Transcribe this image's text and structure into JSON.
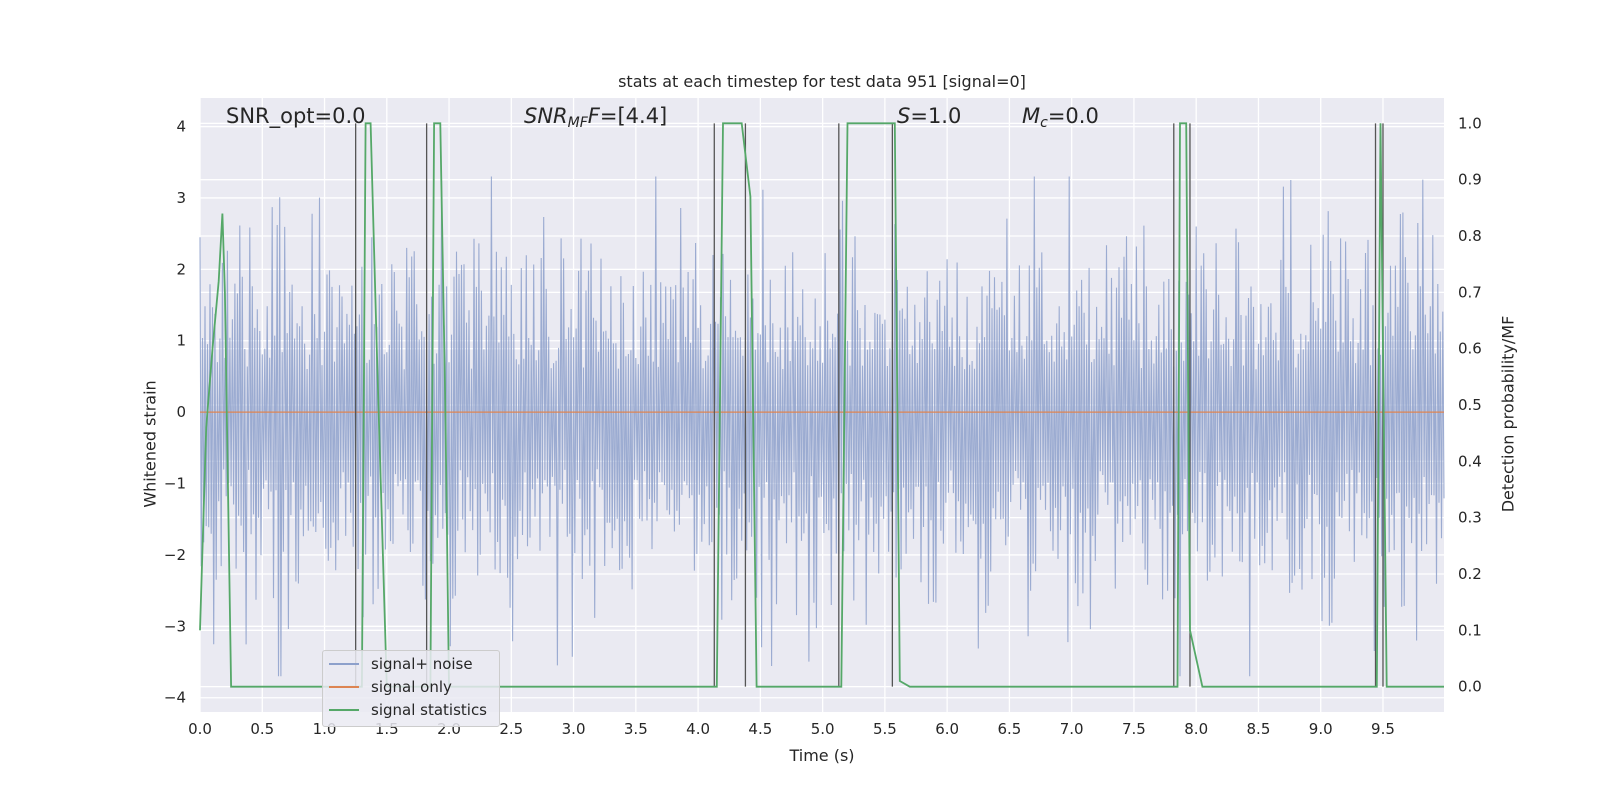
{
  "chart_data": {
    "type": "line",
    "title": "stats at each timestep for test data 951 [signal=0]",
    "xlabel": "Time (s)",
    "ylabel": "Whitened strain",
    "ylabel_right": "Detection probability/MF",
    "xlim": [
      0.0,
      9.99
    ],
    "ylim": [
      -4.2,
      4.4
    ],
    "ylim_right": [
      -0.045,
      1.045
    ],
    "x_ticks": [
      "0.0",
      "0.5",
      "1.0",
      "1.5",
      "2.0",
      "2.5",
      "3.0",
      "3.5",
      "4.0",
      "4.5",
      "5.0",
      "5.5",
      "6.0",
      "6.5",
      "7.0",
      "7.5",
      "8.0",
      "8.5",
      "9.0",
      "9.5"
    ],
    "y_ticks": [
      "4",
      "3",
      "2",
      "1",
      "0",
      "−1",
      "−2",
      "−3",
      "−4"
    ],
    "y_ticks_right": [
      "1.0",
      "0.9",
      "0.8",
      "0.7",
      "0.6",
      "0.5",
      "0.4",
      "0.3",
      "0.2",
      "0.1",
      "0.0"
    ],
    "grid": true,
    "legend_placement": "lower-left",
    "annotations": {
      "snr_opt": "SNR_opt=0.0",
      "snr_mf_main": "SNR",
      "snr_mf_sub": "MF",
      "snr_mf_rest": "=[4.4]",
      "s_main": "S",
      "s_rest": "=1.0",
      "mc_main": "M",
      "mc_sub": "c",
      "mc_rest": "=0.0"
    },
    "series": [
      {
        "name": "signal+ noise",
        "color": "#8da0cb",
        "axis": "left",
        "description_values": "dense white noise, roughly between -3.7 and 3.3",
        "envelope": {
          "typical_min": -2.3,
          "typical_max": 2.0,
          "extreme_min": -3.7,
          "extreme_max": 3.3
        }
      },
      {
        "name": "signal only",
        "color": "#dd8452",
        "axis": "left",
        "x": [
          0.0,
          9.99
        ],
        "y": [
          0.0,
          0.0
        ]
      },
      {
        "name": "signal statistics",
        "color": "#55a868",
        "axis": "right",
        "x": [
          0.0,
          0.05,
          0.1,
          0.15,
          0.18,
          0.2,
          0.25,
          0.3,
          1.3,
          1.33,
          1.37,
          1.42,
          1.5,
          1.6,
          1.85,
          1.88,
          1.93,
          1.97,
          2.0,
          4.15,
          4.2,
          4.35,
          4.42,
          4.47,
          5.15,
          5.2,
          5.58,
          5.62,
          5.7,
          7.85,
          7.87,
          7.92,
          7.95,
          8.05,
          9.45,
          9.48,
          9.53,
          9.58,
          9.99
        ],
        "y": [
          0.1,
          0.46,
          0.6,
          0.72,
          0.84,
          0.7,
          0.0,
          0.0,
          0.0,
          1.0,
          1.0,
          0.6,
          0.0,
          0.0,
          0.0,
          1.0,
          1.0,
          0.5,
          0.0,
          0.0,
          1.0,
          1.0,
          0.87,
          0.0,
          0.0,
          1.0,
          1.0,
          0.01,
          0.0,
          0.0,
          1.0,
          1.0,
          0.1,
          0.0,
          0.0,
          1.0,
          0.0,
          0.0,
          0.0
        ]
      }
    ],
    "vertical_markers": [
      1.25,
      1.82,
      4.13,
      4.38,
      5.13,
      5.56,
      7.82,
      7.95,
      9.44,
      9.5
    ]
  }
}
